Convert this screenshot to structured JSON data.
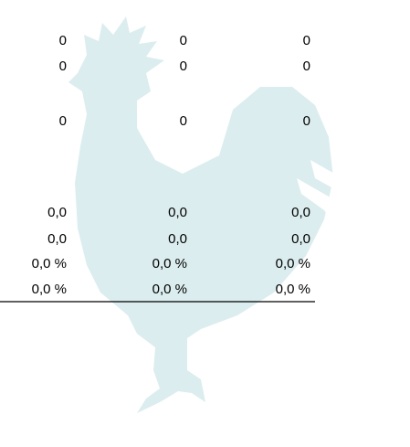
{
  "table": {
    "rows": [
      [
        "0",
        "0",
        "0"
      ],
      [
        "0",
        "0",
        "0"
      ],
      [
        "0",
        "0",
        "0"
      ],
      [
        "0,0",
        "0,0",
        "0,0"
      ],
      [
        "0,0",
        "0,0",
        "0,0"
      ],
      [
        "0,0 %",
        "0,0 %",
        "0,0 %"
      ],
      [
        "0,0 %",
        "0,0 %",
        "0,0 %"
      ]
    ]
  }
}
